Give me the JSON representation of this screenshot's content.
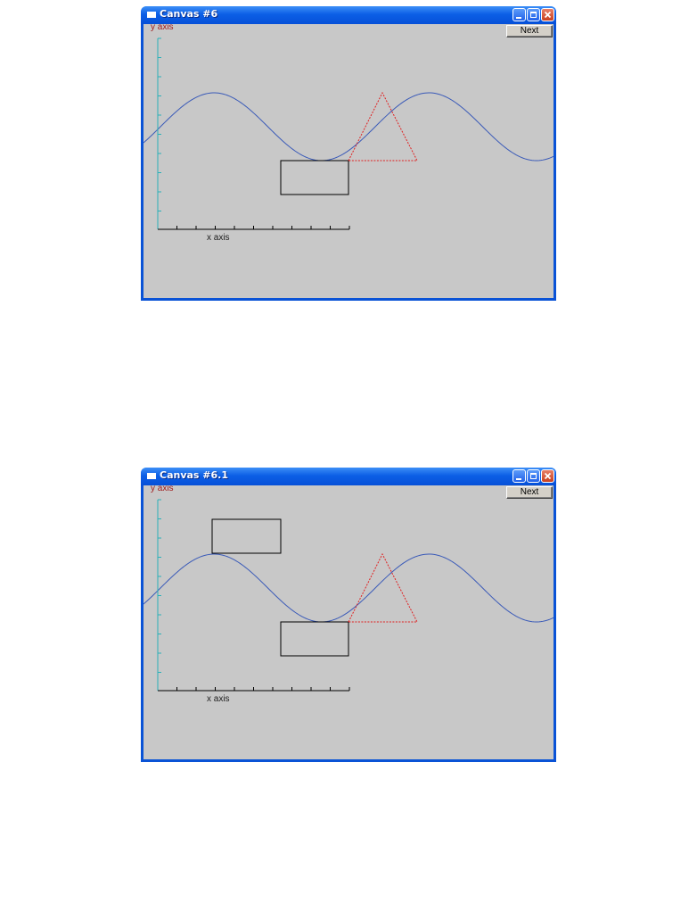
{
  "windows": [
    {
      "title": "Canvas #6",
      "next_label": "Next",
      "y_axis_label": "y axis",
      "x_axis_label": "x axis",
      "extra_rectangle": false
    },
    {
      "title": "Canvas #6.1",
      "next_label": "Next",
      "y_axis_label": "y axis",
      "x_axis_label": "x axis",
      "extra_rectangle": true
    }
  ],
  "colors": {
    "sine": "#3a5ab8",
    "triangle": "#e02020",
    "axis_y": "#2ab0b8",
    "axis_x": "#000000",
    "rectangle": "#000000",
    "canvas_bg": "#c8c8c8"
  },
  "icons": [
    "window-icon",
    "minimize-icon",
    "maximize-icon",
    "close-icon"
  ]
}
